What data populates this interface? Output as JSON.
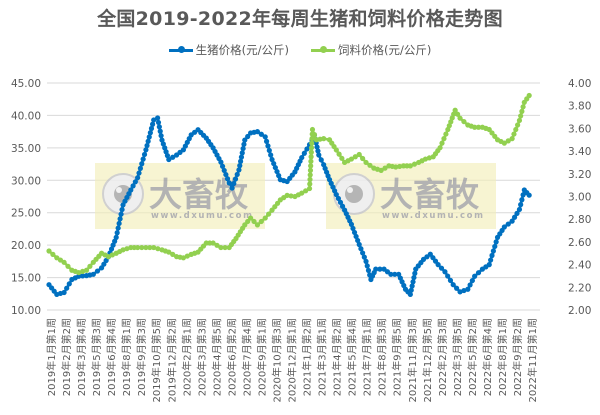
{
  "chart_data": {
    "type": "line",
    "title": "全国2019-2022年每周生猪和饲料价格走势图",
    "xlabel": "",
    "ylabel": "",
    "y2label": "",
    "ylim": [
      10,
      45
    ],
    "y2lim": [
      2.0,
      4.0
    ],
    "yticks": [
      "45.00",
      "40.00",
      "35.00",
      "30.00",
      "25.00",
      "20.00",
      "15.00",
      "10.00"
    ],
    "y2ticks": [
      "4.00",
      "3.80",
      "3.60",
      "3.40",
      "3.20",
      "3.00",
      "2.80",
      "2.60",
      "2.40",
      "2.20",
      "2.00"
    ],
    "grid": true,
    "legend_position": "top",
    "categories": [
      "2019年1月第1周",
      "2019年2月第2周",
      "2019年3月第4周",
      "2019年5月第3周",
      "2019年6月第4周",
      "2019年8月第1周",
      "2019年9月第3周",
      "2019年10月第5周",
      "2019年12月第2周",
      "2020年2月第1周",
      "2020年3月第3周",
      "2020年4月第5周",
      "2020年6月第2周",
      "2020年7月第4周",
      "2020年9月第1周",
      "2020年10月第3周",
      "2020年12月第1周",
      "2021年1月第2周",
      "2021年3月第1周",
      "2021年4月第2周",
      "2021年5月第4周",
      "2021年7月第1周",
      "2021年8月第3周",
      "2021年9月第5周",
      "2021年11月第3周",
      "2021年12月第5周",
      "2022年2月第3周",
      "2022年3月第5周",
      "2022年5月第2周",
      "2022年6月第4周",
      "2022年8月第1周",
      "2022年9月第2周",
      "2022年11月第1周"
    ],
    "series": [
      {
        "name": "生猪价格(元/公斤)",
        "axis": "left",
        "color": "#0070C0",
        "x_frac": [
          0,
          0.016,
          0.031,
          0.047,
          0.061,
          0.077,
          0.091,
          0.108,
          0.122,
          0.138,
          0.152,
          0.168,
          0.182,
          0.199,
          0.215,
          0.223,
          0.232,
          0.246,
          0.262,
          0.276,
          0.292,
          0.306,
          0.323,
          0.337,
          0.353,
          0.37,
          0.376,
          0.39,
          0.402,
          0.414,
          0.428,
          0.444,
          0.458,
          0.475,
          0.489,
          0.505,
          0.519,
          0.535,
          0.545,
          0.554,
          0.564,
          0.576,
          0.59,
          0.607,
          0.621,
          0.637,
          0.651,
          0.661,
          0.671,
          0.688,
          0.702,
          0.718,
          0.732,
          0.742,
          0.753,
          0.769,
          0.783,
          0.799,
          0.813,
          0.83,
          0.844,
          0.86,
          0.874,
          0.89,
          0.904,
          0.921,
          0.935,
          0.951,
          0.966,
          0.976,
          0.986
        ],
        "values": [
          13.9,
          12.4,
          12.7,
          14.7,
          15.2,
          15.3,
          15.5,
          16.5,
          18.2,
          21.2,
          26.2,
          28.5,
          30.4,
          34.7,
          39.3,
          39.6,
          36.2,
          33.2,
          33.9,
          34.7,
          37.0,
          37.8,
          36.5,
          35.0,
          32.8,
          29.6,
          28.8,
          31.6,
          36.2,
          37.3,
          37.5,
          36.7,
          33.2,
          30.1,
          29.8,
          31.3,
          33.5,
          35.5,
          37.0,
          33.9,
          32.4,
          30.1,
          27.8,
          25.4,
          23.2,
          20.1,
          17.5,
          14.7,
          16.3,
          16.3,
          15.5,
          15.5,
          13.2,
          12.4,
          16.3,
          17.8,
          18.6,
          17.0,
          15.9,
          13.9,
          12.8,
          13.2,
          15.2,
          16.3,
          17.0,
          21.2,
          22.8,
          23.7,
          25.5,
          28.5,
          27.7
        ]
      },
      {
        "name": "饲料价格(元/公斤)",
        "axis": "right",
        "color": "#92D050",
        "x_frac": [
          0,
          0.016,
          0.031,
          0.047,
          0.061,
          0.077,
          0.091,
          0.108,
          0.122,
          0.138,
          0.152,
          0.168,
          0.182,
          0.199,
          0.215,
          0.232,
          0.246,
          0.262,
          0.276,
          0.292,
          0.306,
          0.323,
          0.337,
          0.353,
          0.37,
          0.384,
          0.402,
          0.414,
          0.428,
          0.444,
          0.458,
          0.475,
          0.489,
          0.505,
          0.519,
          0.535,
          0.541,
          0.549,
          0.564,
          0.576,
          0.59,
          0.607,
          0.621,
          0.637,
          0.651,
          0.667,
          0.682,
          0.698,
          0.712,
          0.728,
          0.742,
          0.759,
          0.773,
          0.789,
          0.803,
          0.819,
          0.834,
          0.844,
          0.86,
          0.874,
          0.89,
          0.904,
          0.921,
          0.935,
          0.951,
          0.966,
          0.976,
          0.986
        ],
        "values": [
          2.52,
          2.46,
          2.42,
          2.35,
          2.33,
          2.35,
          2.42,
          2.5,
          2.47,
          2.5,
          2.53,
          2.55,
          2.55,
          2.55,
          2.55,
          2.53,
          2.51,
          2.47,
          2.46,
          2.49,
          2.51,
          2.59,
          2.59,
          2.55,
          2.55,
          2.63,
          2.75,
          2.81,
          2.75,
          2.81,
          2.88,
          2.97,
          3.01,
          3.0,
          3.03,
          3.07,
          3.59,
          3.5,
          3.51,
          3.5,
          3.41,
          3.3,
          3.33,
          3.37,
          3.3,
          3.25,
          3.23,
          3.27,
          3.26,
          3.27,
          3.27,
          3.3,
          3.33,
          3.35,
          3.43,
          3.59,
          3.76,
          3.69,
          3.63,
          3.61,
          3.61,
          3.59,
          3.5,
          3.47,
          3.51,
          3.67,
          3.83,
          3.89
        ]
      }
    ],
    "watermark": {
      "brand": "大畜牧",
      "url": "www.dxumu.com"
    }
  },
  "legend": {
    "items": [
      {
        "label": "生猪价格(元/公斤)",
        "color": "#0070C0"
      },
      {
        "label": "饲料价格(元/公斤)",
        "color": "#92D050"
      }
    ]
  }
}
